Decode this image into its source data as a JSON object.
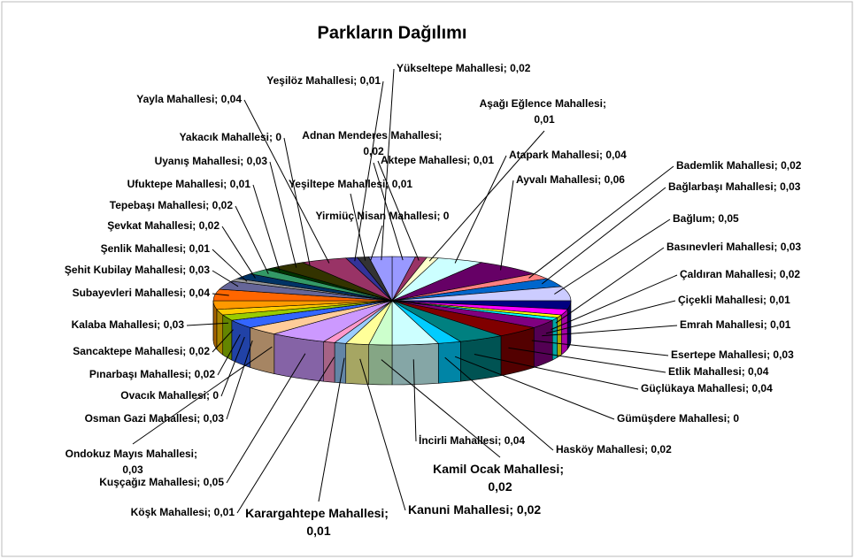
{
  "chart_data": {
    "type": "pie",
    "title": "Parkların Dağılımı",
    "separator": "; ",
    "categories": [
      "Adnan Menderes Mahallesi",
      "Aktepe Mahallesi",
      "Aşağı Eğlence Mahallesi",
      "Atapark Mahallesi",
      "Ayvalı Mahallesi",
      "Bademlik Mahallesi",
      "Bağlarbaşı Mahallesi",
      "Bağlum",
      "Basınevleri Mahallesi",
      "Çaldıran Mahallesi",
      "Çiçekli Mahallesi",
      "Emrah Mahallesi",
      "Esertepe Mahallesi",
      "Etlik Mahallesi",
      "Güçlükaya Mahallesi",
      "Gümüşdere Mahallesi",
      "Hasköy Mahallesi",
      "İncirli Mahallesi",
      "Kamil Ocak Mahallesi",
      "Kanuni Mahallesi",
      "Karargahtepe Mahallesi",
      "Köşk Mahallesi",
      "Kuşçağız Mahallesi",
      "Ondokuz Mayıs Mahallesi",
      "Osman Gazi Mahallesi",
      "Ovacık Mahallesi",
      "Pınarbaşı Mahallesi",
      "Sancaktepe Mahallesi",
      "Kalaba Mahallesi",
      "Subayevleri Mahallesi",
      "Şehit Kubilay Mahallesi",
      "Şenlik Mahallesi",
      "Şevkat Mahallesi",
      "Tepebaşı Mahallesi",
      "Ufuktepe Mahallesi",
      "Uyanış Mahallesi",
      "Yakacık Mahallesi",
      "Yayla Mahallesi",
      "Yeşilöz Mahallesi",
      "Yeşiltepe Mahallesi",
      "Yirmiüç Nisan Mahallesi",
      "Yükseltepe Mahallesi"
    ],
    "values": [
      0.02,
      0.01,
      0.01,
      0.04,
      0.06,
      0.02,
      0.03,
      0.05,
      0.03,
      0.02,
      0.01,
      0.01,
      0.03,
      0.04,
      0.04,
      0,
      0.02,
      0.04,
      0.02,
      0.02,
      0.01,
      0.01,
      0.05,
      0.03,
      0.03,
      0,
      0.02,
      0.02,
      0.03,
      0.04,
      0.03,
      0.01,
      0.02,
      0.02,
      0.01,
      0.03,
      0,
      0.04,
      0.01,
      0.01,
      0,
      0.02
    ],
    "value_labels": [
      "0,02",
      "0,01",
      "0,01",
      "0,04",
      "0,06",
      "0,02",
      "0,03",
      "0,05",
      "0,03",
      "0,02",
      "0,01",
      "0,01",
      "0,03",
      "0,04",
      "0,04",
      "0",
      "0,02",
      "0,04",
      "0,02",
      "0,02",
      "0,01",
      "0,01",
      "0,05",
      "0,03",
      "0,03",
      "0",
      "0,02",
      "0,02",
      "0,03",
      "0,04",
      "0,03",
      "0,01",
      "0,02",
      "0,02",
      "0,01",
      "0,03",
      "0",
      "0,04",
      "0,01",
      "0,01",
      "0",
      "0,02"
    ],
    "colors": [
      "#9999FF",
      "#993366",
      "#FFFFCC",
      "#CCFFFF",
      "#660066",
      "#FF8080",
      "#0066CC",
      "#CCCCFF",
      "#000080",
      "#FF00FF",
      "#FFFF00",
      "#00FFFF",
      "#800080",
      "#800000",
      "#008080",
      "#0000FF",
      "#00CCFF",
      "#CCFFFF",
      "#CCFFCC",
      "#FFFF99",
      "#99CCFF",
      "#FF99CC",
      "#CC99FF",
      "#FFCC99",
      "#3366FF",
      "#33CCCC",
      "#99CC00",
      "#FFCC00",
      "#FF9900",
      "#FF6600",
      "#666699",
      "#969696",
      "#003366",
      "#339966",
      "#003300",
      "#333300",
      "#993300",
      "#993366",
      "#333399",
      "#333333",
      "#FFFFFF",
      "#9999FF"
    ]
  }
}
